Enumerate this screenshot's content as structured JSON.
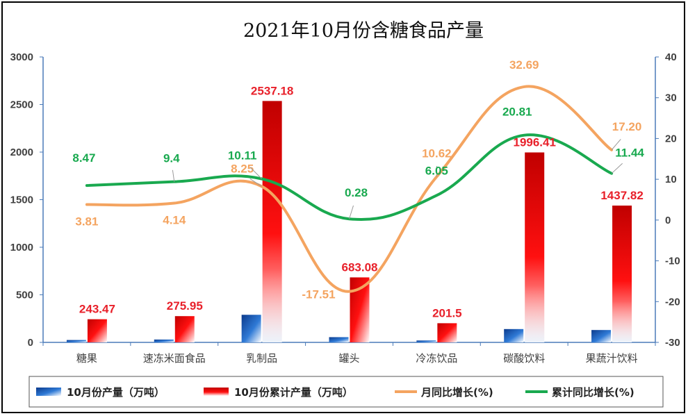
{
  "chart_data": {
    "type": "bar",
    "title": "2021年10月份含糖食品产量",
    "categories": [
      "糖果",
      "速冻米面食品",
      "乳制品",
      "罐头",
      "冷冻饮品",
      "碳酸饮料",
      "果蔬汁饮料"
    ],
    "series": [
      {
        "name": "10月份产量（万吨）",
        "type": "bar",
        "axis": "left",
        "color": "#1f5fb0",
        "values": [
          25,
          30,
          290,
          55,
          20,
          140,
          130
        ]
      },
      {
        "name": "10月份累计产量（万吨）",
        "type": "bar",
        "axis": "left",
        "color": "#e00010",
        "values": [
          243.47,
          275.95,
          2537.18,
          683.08,
          201.5,
          1996.41,
          1437.82
        ],
        "labels": [
          "243.47",
          "275.95",
          "2537.18",
          "683.08",
          "201.5",
          "1996.41",
          "1437.82"
        ]
      },
      {
        "name": "月同比增长(%)",
        "type": "line",
        "axis": "right",
        "color": "#f4a460",
        "values": [
          3.81,
          4.14,
          8.25,
          -17.51,
          10.62,
          32.69,
          17.2
        ],
        "labels": [
          "3.81",
          "4.14",
          "8.25",
          "-17.51",
          "10.62",
          "32.69",
          "17.20"
        ]
      },
      {
        "name": "累计同比增长(%)",
        "type": "line",
        "axis": "right",
        "color": "#19a94f",
        "values": [
          8.47,
          9.4,
          10.11,
          0.28,
          6.05,
          20.81,
          11.44
        ],
        "labels": [
          "8.47",
          "9.4",
          "10.11",
          "0.28",
          "6.05",
          "20.81",
          "11.44"
        ]
      }
    ],
    "y_left": {
      "min": 0,
      "max": 3000,
      "ticks": [
        "0",
        "500",
        "1000",
        "1500",
        "2000",
        "2500",
        "3000"
      ]
    },
    "y_right": {
      "min": -30,
      "max": 40,
      "ticks": [
        "-30",
        "-20",
        "-10",
        "0",
        "10",
        "20",
        "30",
        "40"
      ]
    },
    "grid": false,
    "legend_position": "bottom"
  }
}
